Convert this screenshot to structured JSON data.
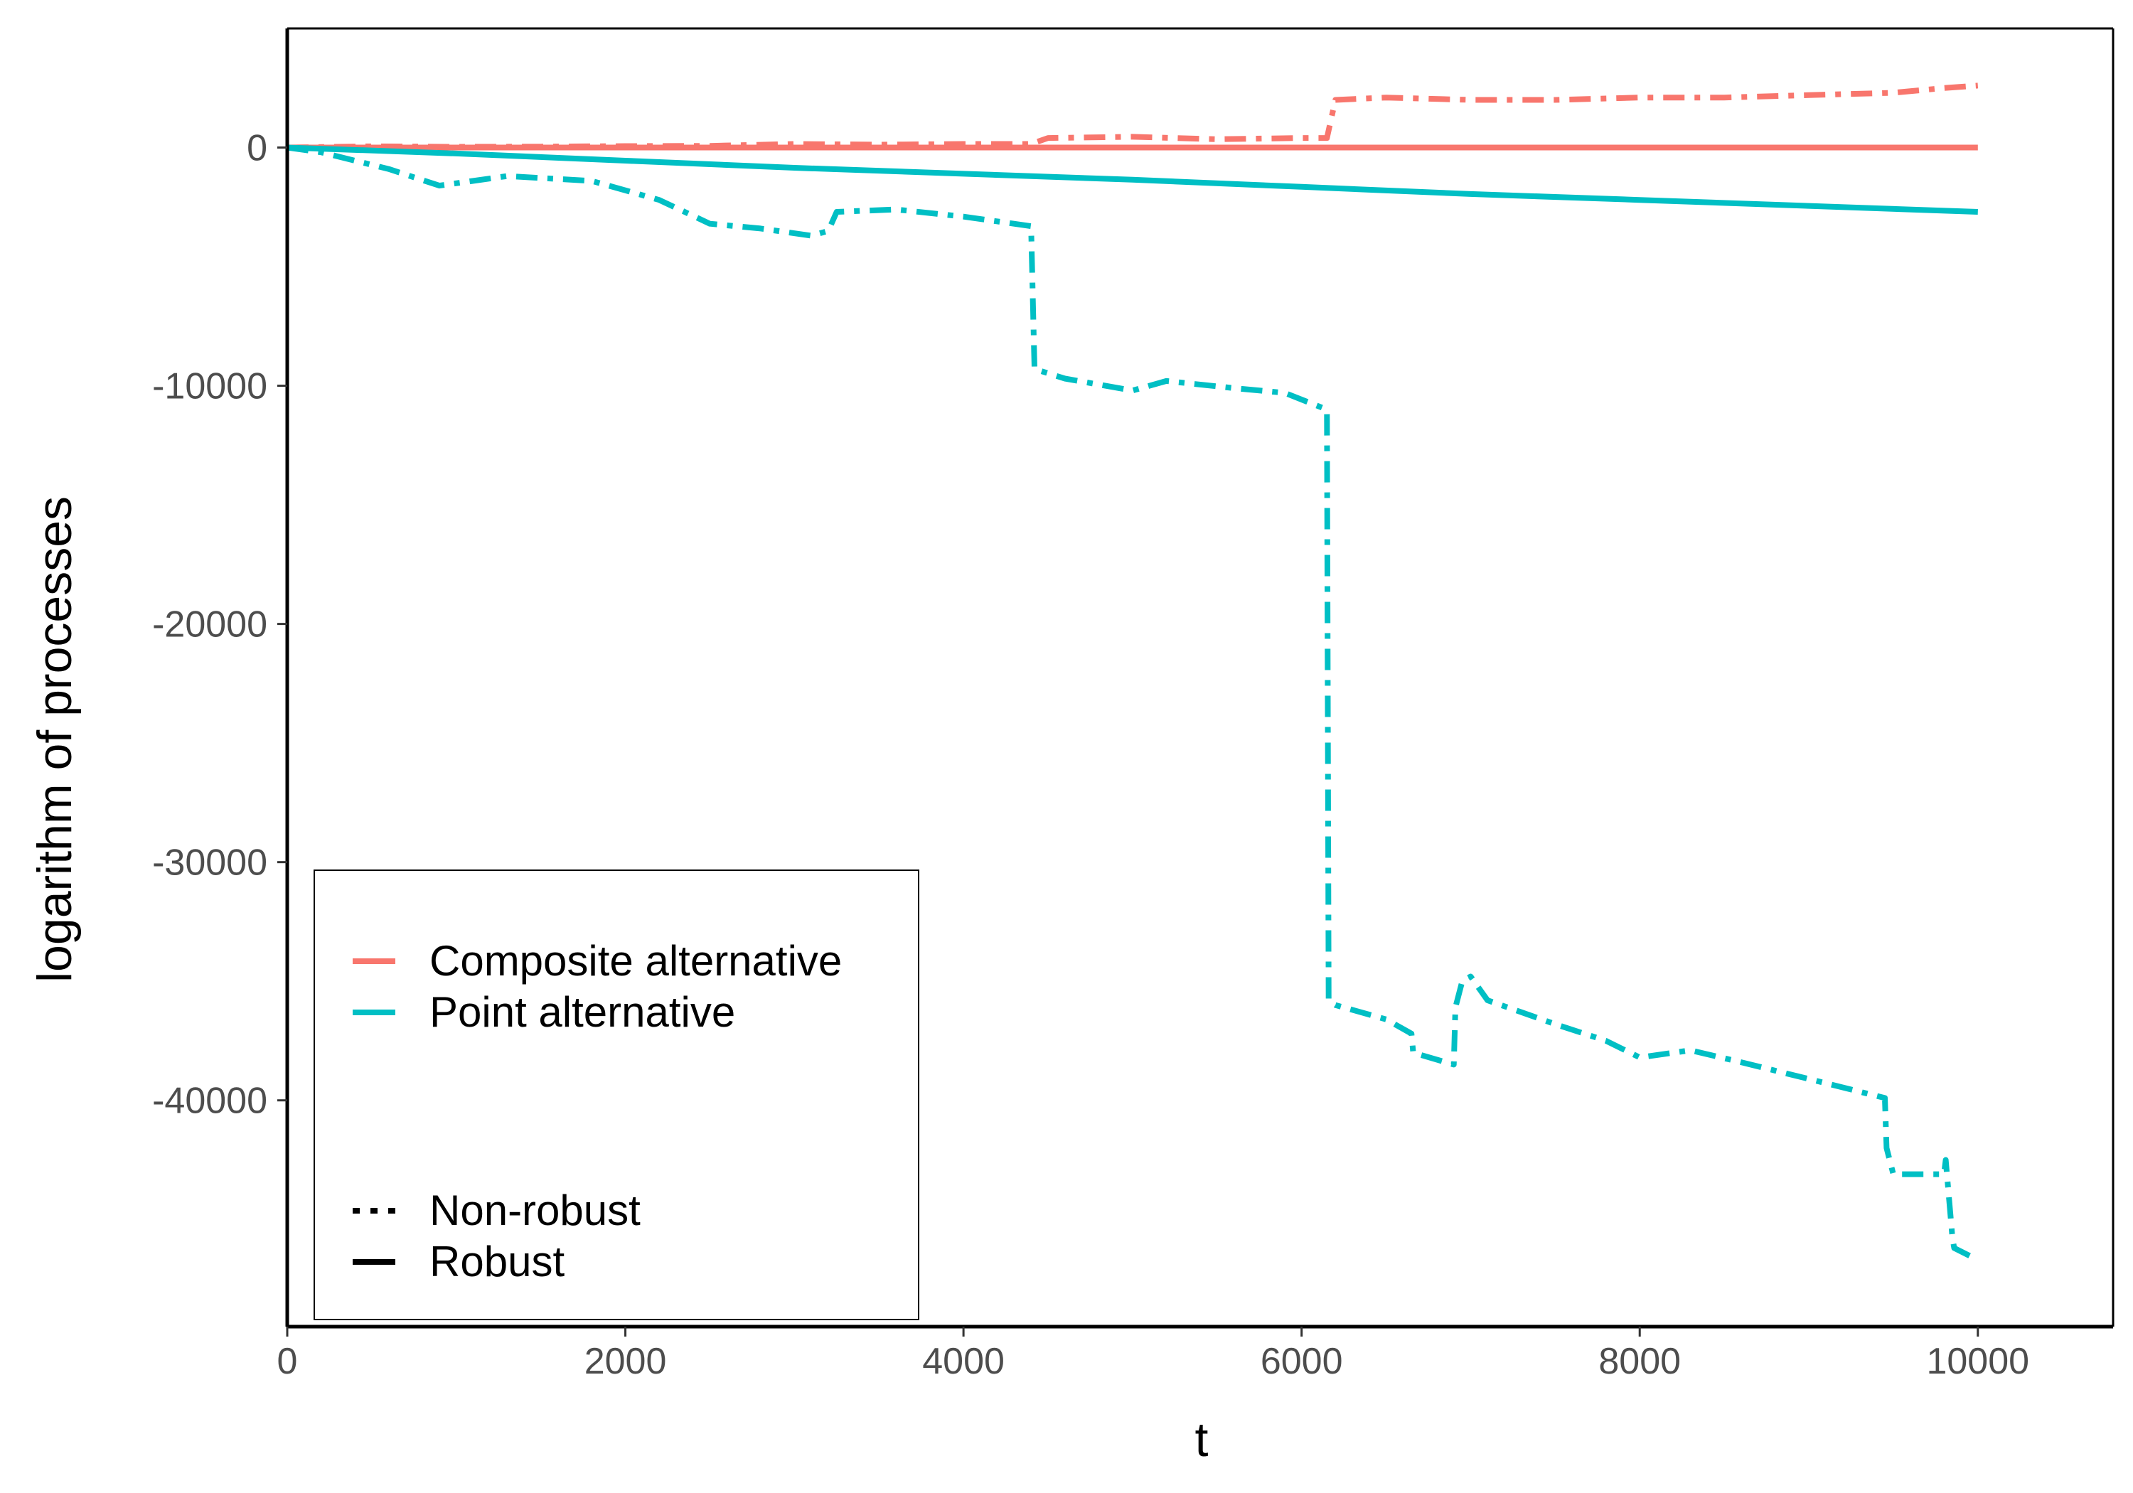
{
  "colors": {
    "composite": "#F8766D",
    "point": "#00BFC4",
    "axis": "#000000",
    "tick_text": "#4d4d4d"
  },
  "chart_data": {
    "type": "line",
    "title": "",
    "xlabel": "t",
    "ylabel": "logarithm of processes",
    "xlim": [
      0,
      10800
    ],
    "ylim": [
      -49500,
      5000
    ],
    "x_ticks": [
      0,
      2000,
      4000,
      6000,
      8000,
      10000
    ],
    "x_tick_labels": [
      "0",
      "2000",
      "4000",
      "6000",
      "8000",
      "10000"
    ],
    "y_ticks": [
      0,
      -10000,
      -20000,
      -30000,
      -40000
    ],
    "y_tick_labels": [
      "0",
      "-10000",
      "-20000",
      "-30000",
      "-40000"
    ],
    "grid": false,
    "legend_position": "bottom-left inside",
    "legend": {
      "colour_entries": [
        "Composite alternative",
        "Point alternative"
      ],
      "linetype_entries": [
        "Non-robust",
        "Robust"
      ]
    },
    "series": [
      {
        "name": "Composite alternative",
        "linetype": "Robust",
        "color": "#F8766D",
        "x": [
          0,
          10000
        ],
        "y": [
          0,
          0
        ]
      },
      {
        "name": "Composite alternative",
        "linetype": "Non-robust",
        "color": "#F8766D",
        "x": [
          0,
          500,
          1000,
          1500,
          2000,
          2500,
          3000,
          3500,
          4000,
          4400,
          4500,
          5000,
          5500,
          6000,
          6150,
          6200,
          6500,
          7000,
          7500,
          8000,
          8500,
          9000,
          9500,
          9800,
          10000
        ],
        "y": [
          0,
          50,
          30,
          40,
          60,
          70,
          150,
          120,
          150,
          150,
          400,
          450,
          350,
          400,
          400,
          2000,
          2100,
          2000,
          2000,
          2100,
          2100,
          2200,
          2300,
          2500,
          2600
        ]
      },
      {
        "name": "Point alternative",
        "linetype": "Robust",
        "color": "#00BFC4",
        "x": [
          0,
          1000,
          2000,
          3000,
          4000,
          5000,
          6000,
          7000,
          8000,
          9000,
          10000
        ],
        "y": [
          0,
          -250,
          -550,
          -850,
          -1100,
          -1350,
          -1650,
          -1950,
          -2200,
          -2450,
          -2700
        ]
      },
      {
        "name": "Point alternative",
        "linetype": "Non-robust",
        "color": "#00BFC4",
        "x": [
          0,
          200,
          600,
          900,
          1300,
          1800,
          2200,
          2500,
          2800,
          3100,
          3200,
          3250,
          3600,
          4000,
          4400,
          4420,
          4600,
          5000,
          5200,
          5600,
          5900,
          6150,
          6160,
          6200,
          6500,
          6650,
          6660,
          6900,
          6910,
          6950,
          7000,
          7100,
          7500,
          7800,
          8000,
          8300,
          8600,
          9000,
          9450,
          9460,
          9500,
          9800,
          9810,
          9850,
          9860,
          10000
        ],
        "y": [
          0,
          -200,
          -900,
          -1600,
          -1200,
          -1400,
          -2200,
          -3200,
          -3400,
          -3700,
          -3500,
          -2700,
          -2600,
          -2900,
          -3300,
          -9300,
          -9700,
          -10200,
          -9800,
          -10100,
          -10300,
          -11000,
          -35800,
          -36000,
          -36600,
          -37200,
          -38000,
          -38500,
          -36100,
          -35000,
          -34800,
          -35800,
          -36800,
          -37500,
          -38200,
          -37900,
          -38400,
          -39100,
          -39900,
          -42000,
          -43100,
          -43100,
          -42500,
          -45800,
          -46200,
          -46700
        ]
      }
    ]
  }
}
